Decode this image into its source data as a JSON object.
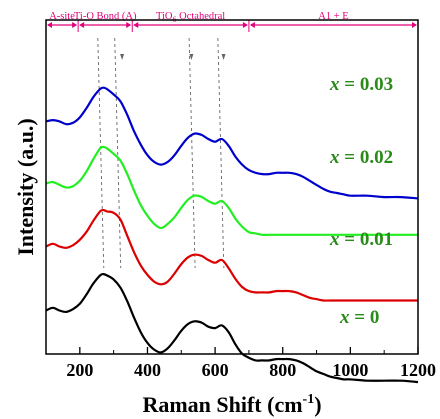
{
  "chart_data": {
    "type": "line",
    "title": "",
    "xlabel": "Raman Shift (cm",
    "xlabel_sup": "-1",
    "xlabel_close": ")",
    "ylabel": "Intensity (a.u.)",
    "xlim": [
      100,
      1200
    ],
    "x_ticks": [
      "200",
      "400",
      "600",
      "800",
      "1000",
      "1200"
    ],
    "x_tick_values": [
      200,
      400,
      600,
      800,
      1000,
      1200
    ],
    "y_ticks_shown": false,
    "grid": false,
    "regions": [
      {
        "label": "A-site",
        "x_start": 100,
        "x_end": 195
      },
      {
        "label": "Ti-O Bond (A)",
        "x_start": 195,
        "x_end": 355
      },
      {
        "label_main": "TiO",
        "label_sub": "6",
        "label_rest": " Octahedral",
        "x_start": 355,
        "x_end": 700
      },
      {
        "label": "A1 + E",
        "x_start": 700,
        "x_end": 1200
      }
    ],
    "dashed_guides_x": [
      265,
      315,
      535,
      620
    ],
    "peak_arrows_x": [
      325,
      530,
      625
    ],
    "x": [
      100,
      120,
      140,
      160,
      180,
      200,
      220,
      240,
      260,
      270,
      280,
      300,
      320,
      340,
      360,
      380,
      400,
      420,
      440,
      460,
      480,
      500,
      520,
      540,
      560,
      580,
      600,
      620,
      640,
      660,
      680,
      700,
      720,
      740,
      760,
      780,
      800,
      820,
      840,
      860,
      880,
      900,
      920,
      940,
      960,
      980,
      1000,
      1050,
      1100,
      1150,
      1200
    ],
    "series": [
      {
        "name": "x = 0.03",
        "color": "#0000cc",
        "values": [
          0.33,
          0.34,
          0.33,
          0.31,
          0.32,
          0.36,
          0.43,
          0.51,
          0.57,
          0.58,
          0.57,
          0.53,
          0.48,
          0.38,
          0.26,
          0.16,
          0.08,
          0.03,
          0.01,
          0.03,
          0.08,
          0.15,
          0.21,
          0.24,
          0.23,
          0.2,
          0.18,
          0.2,
          0.15,
          0.07,
          0.01,
          -0.03,
          -0.05,
          -0.06,
          -0.06,
          -0.05,
          -0.05,
          -0.05,
          -0.06,
          -0.08,
          -0.11,
          -0.14,
          -0.17,
          -0.19,
          -0.2,
          -0.21,
          -0.22,
          -0.22,
          -0.23,
          -0.23,
          -0.24
        ]
      },
      {
        "name": "x = 0.02",
        "color": "#22ee22",
        "values": [
          0.33,
          0.34,
          0.32,
          0.3,
          0.31,
          0.35,
          0.42,
          0.51,
          0.59,
          0.6,
          0.59,
          0.55,
          0.5,
          0.4,
          0.28,
          0.17,
          0.09,
          0.03,
          0.0,
          0.03,
          0.08,
          0.15,
          0.21,
          0.24,
          0.23,
          0.2,
          0.18,
          0.2,
          0.15,
          0.07,
          0.01,
          -0.03,
          -0.04,
          -0.05,
          -0.05,
          -0.05,
          -0.05,
          -0.05,
          -0.05,
          -0.05,
          -0.05,
          -0.05,
          -0.05,
          -0.05,
          -0.05,
          -0.05,
          -0.05,
          -0.05,
          -0.05,
          -0.05,
          -0.05
        ]
      },
      {
        "name": "x = 0.01",
        "color": "#dd0000",
        "values": [
          0.3,
          0.32,
          0.3,
          0.29,
          0.31,
          0.35,
          0.41,
          0.49,
          0.56,
          0.57,
          0.56,
          0.55,
          0.5,
          0.38,
          0.26,
          0.16,
          0.09,
          0.04,
          0.02,
          0.04,
          0.1,
          0.17,
          0.22,
          0.24,
          0.23,
          0.2,
          0.18,
          0.2,
          0.14,
          0.06,
          0.0,
          -0.03,
          -0.04,
          -0.04,
          -0.04,
          -0.03,
          -0.03,
          -0.03,
          -0.04,
          -0.06,
          -0.08,
          -0.09,
          -0.1,
          -0.1,
          -0.1,
          -0.1,
          -0.1,
          -0.1,
          -0.1,
          -0.1,
          -0.1
        ]
      },
      {
        "name": "x = 0",
        "color": "#000000",
        "values": [
          0.3,
          0.32,
          0.3,
          0.29,
          0.31,
          0.35,
          0.42,
          0.5,
          0.56,
          0.57,
          0.56,
          0.53,
          0.47,
          0.37,
          0.25,
          0.14,
          0.06,
          0.01,
          -0.01,
          0.02,
          0.08,
          0.15,
          0.2,
          0.22,
          0.21,
          0.18,
          0.17,
          0.19,
          0.14,
          0.05,
          -0.02,
          -0.05,
          -0.07,
          -0.07,
          -0.07,
          -0.06,
          -0.06,
          -0.06,
          -0.07,
          -0.09,
          -0.12,
          -0.15,
          -0.17,
          -0.19,
          -0.2,
          -0.21,
          -0.21,
          -0.22,
          -0.22,
          -0.22,
          -0.23
        ]
      }
    ]
  }
}
